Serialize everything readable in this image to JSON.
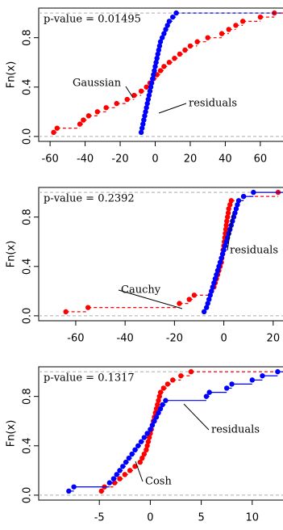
{
  "chart_data": [
    {
      "type": "ecdf",
      "ylabel": "Fn(x)",
      "annotation": "p-value = 0.01495",
      "xlim": [
        -66.5,
        73.4
      ],
      "ylim": [
        -0.04,
        1.04
      ],
      "xticks": [
        -60,
        -40,
        -20,
        0,
        20,
        40,
        60
      ],
      "yticks": [
        {
          "value": 0,
          "label": "0.0"
        },
        0.4,
        0.8
      ],
      "hlines": [
        0,
        1
      ],
      "series": [
        {
          "name": "Gaussian",
          "color": "#ff0000",
          "line_style": "dashed",
          "x": [
            -58,
            -56,
            -43,
            -41,
            -38,
            -33,
            -28,
            -22,
            -16,
            -12,
            -8,
            -5,
            -3,
            -1,
            1,
            3,
            5,
            8,
            11,
            14,
            17,
            20,
            24,
            30,
            38,
            42,
            46,
            50,
            60,
            68
          ],
          "values": [
            0.033,
            0.067,
            0.1,
            0.133,
            0.167,
            0.2,
            0.233,
            0.267,
            0.3,
            0.333,
            0.367,
            0.4,
            0.433,
            0.467,
            0.5,
            0.533,
            0.567,
            0.6,
            0.633,
            0.667,
            0.7,
            0.733,
            0.767,
            0.8,
            0.833,
            0.867,
            0.9,
            0.933,
            0.967,
            1
          ]
        },
        {
          "name": "residuals",
          "color": "#0000ff",
          "line_style": "dashed",
          "x": [
            -8,
            -7.5,
            -7,
            -6.5,
            -6,
            -5.5,
            -5,
            -4.5,
            -4,
            -3.5,
            -3,
            -2.5,
            -2,
            -1.5,
            -1,
            -0.5,
            0,
            0.5,
            1,
            1.5,
            2,
            2.5,
            3,
            4,
            5,
            6,
            7,
            8,
            10,
            12
          ],
          "values": [
            0.033,
            0.067,
            0.1,
            0.133,
            0.167,
            0.2,
            0.233,
            0.267,
            0.3,
            0.333,
            0.367,
            0.4,
            0.433,
            0.467,
            0.5,
            0.533,
            0.567,
            0.6,
            0.633,
            0.667,
            0.7,
            0.733,
            0.767,
            0.8,
            0.833,
            0.867,
            0.9,
            0.933,
            0.967,
            1
          ]
        }
      ]
    },
    {
      "type": "ecdf",
      "ylabel": "Fn(x)",
      "annotation": "p-value = 0.2392",
      "xlim": [
        -75,
        24.3
      ],
      "ylim": [
        -0.04,
        1.04
      ],
      "xticks": [
        -60,
        -40,
        -20,
        0,
        20
      ],
      "yticks": [
        {
          "value": 0,
          "label": "0.0"
        },
        0.4,
        0.8
      ],
      "hlines": [
        0,
        1
      ],
      "series": [
        {
          "name": "Cauchy",
          "color": "#ff0000",
          "line_style": "dashed",
          "x": [
            -64,
            -55,
            -18,
            -14,
            -12,
            -5,
            -4,
            -3.5,
            -3,
            -2.5,
            -2,
            -1.5,
            -1,
            -0.8,
            -0.5,
            -0.3,
            0,
            0.2,
            0.4,
            0.6,
            0.8,
            1,
            1.2,
            1.5,
            1.8,
            2,
            2.5,
            3,
            8,
            22
          ],
          "values": [
            0.033,
            0.067,
            0.1,
            0.133,
            0.167,
            0.2,
            0.233,
            0.267,
            0.3,
            0.333,
            0.367,
            0.4,
            0.433,
            0.467,
            0.5,
            0.533,
            0.567,
            0.6,
            0.633,
            0.667,
            0.7,
            0.733,
            0.767,
            0.8,
            0.833,
            0.867,
            0.9,
            0.933,
            0.967,
            1
          ]
        },
        {
          "name": "residuals",
          "color": "#0000ff",
          "line_style": "solid",
          "x": [
            -8,
            -7,
            -6.5,
            -6,
            -5.5,
            -5,
            -4.5,
            -4,
            -3.5,
            -3,
            -2.5,
            -2,
            -1.5,
            -1,
            -0.5,
            0,
            0.5,
            1,
            1.5,
            2,
            2.5,
            3,
            3.5,
            4,
            4.5,
            5,
            5.5,
            6,
            8,
            12
          ],
          "values": [
            0.033,
            0.067,
            0.1,
            0.133,
            0.167,
            0.2,
            0.233,
            0.267,
            0.3,
            0.333,
            0.367,
            0.4,
            0.433,
            0.467,
            0.5,
            0.533,
            0.567,
            0.6,
            0.633,
            0.667,
            0.7,
            0.733,
            0.767,
            0.8,
            0.833,
            0.867,
            0.9,
            0.933,
            0.967,
            1
          ]
        }
      ]
    },
    {
      "type": "ecdf",
      "ylabel": "Fn(x)",
      "annotation": "p-value = 0.1317",
      "xlim": [
        -10.95,
        13.1
      ],
      "ylim": [
        -0.04,
        1.04
      ],
      "xticks": [
        -5,
        0,
        5,
        10
      ],
      "yticks": [
        {
          "value": 0,
          "label": "0.0"
        },
        0.4,
        0.8
      ],
      "hlines": [
        0,
        1
      ],
      "series": [
        {
          "name": "Cosh",
          "color": "#ff0000",
          "line_style": "dashed",
          "x": [
            -4.8,
            -4.5,
            -3.5,
            -3,
            -2.5,
            -2,
            -1.5,
            -1,
            -0.8,
            -0.6,
            -0.4,
            -0.3,
            -0.2,
            -0.1,
            0,
            0.1,
            0.2,
            0.3,
            0.4,
            0.5,
            0.6,
            0.7,
            0.8,
            0.9,
            1,
            1.3,
            1.7,
            2.2,
            3,
            4
          ],
          "values": [
            0.033,
            0.067,
            0.1,
            0.133,
            0.167,
            0.2,
            0.233,
            0.267,
            0.3,
            0.333,
            0.367,
            0.4,
            0.433,
            0.467,
            0.5,
            0.533,
            0.567,
            0.6,
            0.633,
            0.667,
            0.7,
            0.733,
            0.767,
            0.8,
            0.833,
            0.867,
            0.9,
            0.933,
            0.967,
            1
          ]
        },
        {
          "name": "residuals",
          "color": "#0000ff",
          "line_style": "solid",
          "x": [
            -8,
            -7.5,
            -4,
            -3.6,
            -3.3,
            -3,
            -2.7,
            -2.4,
            -2.1,
            -1.8,
            -1.5,
            -1.2,
            -0.9,
            -0.6,
            -0.3,
            0,
            0.2,
            0.4,
            0.6,
            0.8,
            1,
            1.2,
            1.5,
            5.5,
            5.8,
            7.5,
            8,
            10,
            11,
            12.5
          ],
          "values": [
            0.033,
            0.067,
            0.1,
            0.133,
            0.167,
            0.2,
            0.233,
            0.267,
            0.3,
            0.333,
            0.367,
            0.4,
            0.433,
            0.467,
            0.5,
            0.533,
            0.567,
            0.6,
            0.633,
            0.667,
            0.7,
            0.733,
            0.767,
            0.8,
            0.833,
            0.867,
            0.9,
            0.933,
            0.967,
            1
          ]
        }
      ]
    }
  ]
}
